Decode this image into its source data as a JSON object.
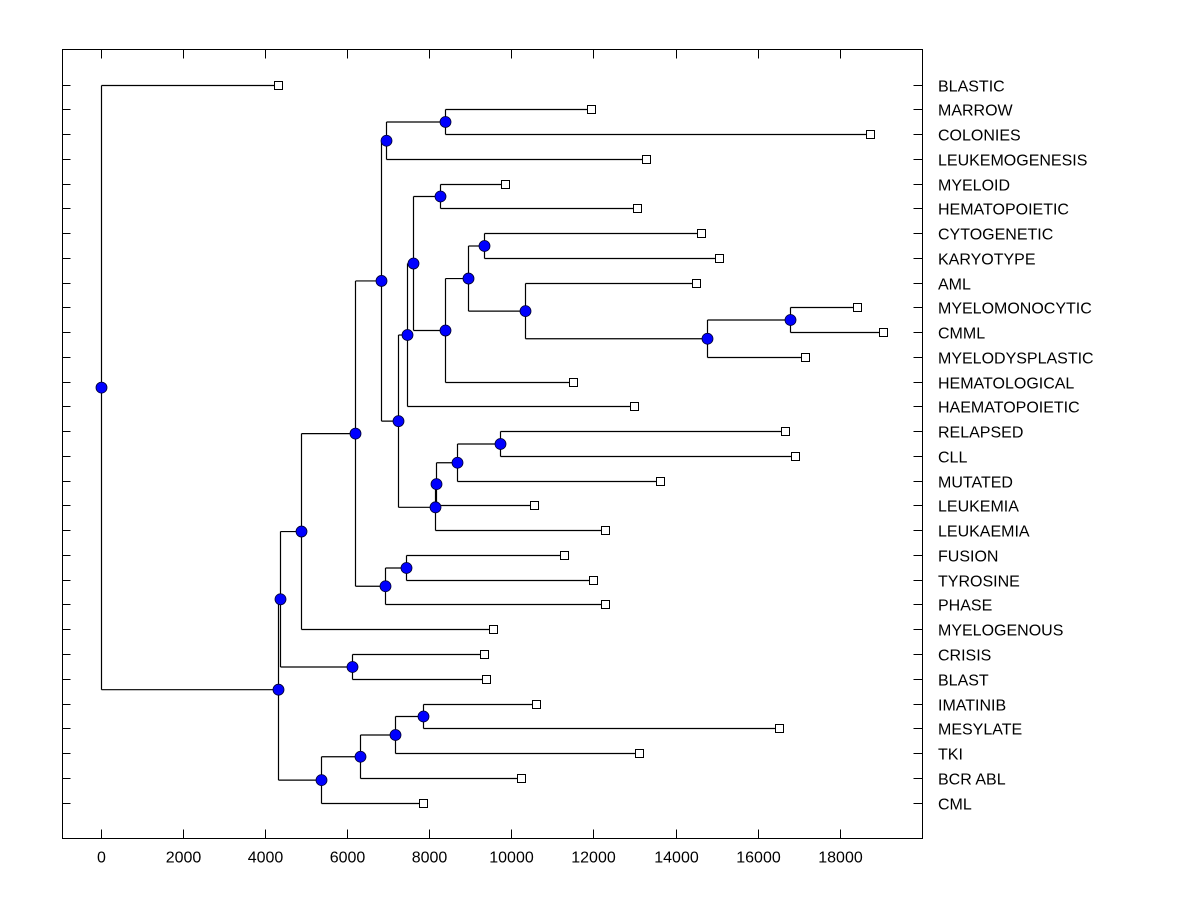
{
  "chart_data": {
    "type": "dendrogram",
    "title": "",
    "xlabel": "",
    "ylabel": "",
    "orientation": "horizontal",
    "xlim": [
      -900,
      19800
    ],
    "x_ticks": [
      0,
      2000,
      4000,
      6000,
      8000,
      10000,
      12000,
      14000,
      16000,
      18000
    ],
    "x_tick_labels": [
      "0",
      "2000",
      "4000",
      "6000",
      "8000",
      "10000",
      "12000",
      "14000",
      "16000",
      "18000"
    ],
    "grid": false,
    "leaf_labels_position": "right",
    "colors": {
      "node_fill": "#0000ff",
      "line": "#000000",
      "leaf_fill": "#ffffff"
    },
    "leaves": [
      {
        "label": "BLASTIC",
        "value": 4320
      },
      {
        "label": "MARROW",
        "value": 11930
      },
      {
        "label": "COLONIES",
        "value": 18730
      },
      {
        "label": "LEUKEMOGENESIS",
        "value": 13270
      },
      {
        "label": "MYELOID",
        "value": 9850
      },
      {
        "label": "HEMATOPOIETIC",
        "value": 13050
      },
      {
        "label": "CYTOGENETIC",
        "value": 14630
      },
      {
        "label": "KARYOTYPE",
        "value": 15070
      },
      {
        "label": "AML",
        "value": 14490
      },
      {
        "label": "MYELOMONOCYTIC",
        "value": 18420
      },
      {
        "label": "CMML",
        "value": 19050
      },
      {
        "label": "MYELODYSPLASTIC",
        "value": 17150
      },
      {
        "label": "HEMATOLOGICAL",
        "value": 11490
      },
      {
        "label": "HAEMATOPOIETIC",
        "value": 12980
      },
      {
        "label": "RELAPSED",
        "value": 16660
      },
      {
        "label": "CLL",
        "value": 16900
      },
      {
        "label": "MUTATED",
        "value": 13610
      },
      {
        "label": "LEUKEMIA",
        "value": 10560
      },
      {
        "label": "LEUKAEMIA",
        "value": 12290
      },
      {
        "label": "FUSION",
        "value": 11290
      },
      {
        "label": "TYROSINE",
        "value": 11980
      },
      {
        "label": "PHASE",
        "value": 12270
      },
      {
        "label": "MYELOGENOUS",
        "value": 9540
      },
      {
        "label": "CRISIS",
        "value": 9340
      },
      {
        "label": "BLAST",
        "value": 9370
      },
      {
        "label": "IMATINIB",
        "value": 10590
      },
      {
        "label": "MESYLATE",
        "value": 16510
      },
      {
        "label": "TKI",
        "value": 13100
      },
      {
        "label": "BCR ABL",
        "value": 10240
      },
      {
        "label": "CML",
        "value": 7850
      }
    ],
    "tree": {
      "value": 0,
      "children": [
        {
          "leaf": "BLASTIC"
        },
        {
          "value": 4320,
          "children": [
            {
              "value": 4370,
              "children": [
                {
                  "value": 4880,
                  "children": [
                    {
                      "value": 6200,
                      "children": [
                        {
                          "value": 6830,
                          "children": [
                            {
                              "value": 6950,
                              "children": [
                                {
                                  "value": 8370,
                                  "children": [
                                    {
                                      "leaf": "MARROW"
                                    },
                                    {
                                      "leaf": "COLONIES"
                                    }
                                  ]
                                },
                                {
                                  "leaf": "LEUKEMOGENESIS"
                                }
                              ]
                            },
                            {
                              "value": 7240,
                              "children": [
                                {
                                  "value": 7460,
                                  "children": [
                                    {
                                      "value": 7610,
                                      "children": [
                                        {
                                          "value": 8270,
                                          "children": [
                                            {
                                              "leaf": "MYELOID"
                                            },
                                            {
                                              "leaf": "HEMATOPOIETIC"
                                            }
                                          ]
                                        },
                                        {
                                          "value": 8390,
                                          "children": [
                                            {
                                              "value": 8950,
                                              "children": [
                                                {
                                                  "value": 9340,
                                                  "children": [
                                                    {
                                                      "leaf": "CYTOGENETIC"
                                                    },
                                                    {
                                                      "leaf": "KARYOTYPE"
                                                    }
                                                  ]
                                                },
                                                {
                                                  "value": 10340,
                                                  "children": [
                                                    {
                                                      "leaf": "AML"
                                                    },
                                                    {
                                                      "value": 14760,
                                                      "children": [
                                                        {
                                                          "value": 16780,
                                                          "children": [
                                                            {
                                                              "leaf": "MYELOMONOCYTIC"
                                                            },
                                                            {
                                                              "leaf": "CMML"
                                                            }
                                                          ]
                                                        },
                                                        {
                                                          "leaf": "MYELODYSPLASTIC"
                                                        }
                                                      ]
                                                    }
                                                  ]
                                                }
                                              ]
                                            },
                                            {
                                              "leaf": "HEMATOLOGICAL"
                                            }
                                          ]
                                        }
                                      ]
                                    },
                                    {
                                      "leaf": "HAEMATOPOIETIC"
                                    }
                                  ]
                                },
                                {
                                  "value": 8150,
                                  "children": [
                                    {
                                      "value": 8170,
                                      "children": [
                                        {
                                          "value": 8680,
                                          "children": [
                                            {
                                              "value": 9730,
                                              "children": [
                                                {
                                                  "leaf": "RELAPSED"
                                                },
                                                {
                                                  "leaf": "CLL"
                                                }
                                              ]
                                            },
                                            {
                                              "leaf": "MUTATED"
                                            }
                                          ]
                                        },
                                        {
                                          "leaf": "LEUKEMIA"
                                        }
                                      ]
                                    },
                                    {
                                      "leaf": "LEUKAEMIA"
                                    }
                                  ]
                                }
                              ]
                            }
                          ]
                        },
                        {
                          "value": 6930,
                          "children": [
                            {
                              "value": 7440,
                              "children": [
                                {
                                  "leaf": "FUSION"
                                },
                                {
                                  "leaf": "TYROSINE"
                                }
                              ]
                            },
                            {
                              "leaf": "PHASE"
                            }
                          ]
                        }
                      ]
                    },
                    {
                      "leaf": "MYELOGENOUS"
                    }
                  ]
                },
                {
                  "value": 6120,
                  "children": [
                    {
                      "leaf": "CRISIS"
                    },
                    {
                      "leaf": "BLAST"
                    }
                  ]
                }
              ]
            },
            {
              "value": 5370,
              "children": [
                {
                  "value": 6320,
                  "children": [
                    {
                      "value": 7170,
                      "children": [
                        {
                          "value": 7850,
                          "children": [
                            {
                              "leaf": "IMATINIB"
                            },
                            {
                              "leaf": "MESYLATE"
                            }
                          ]
                        },
                        {
                          "leaf": "TKI"
                        }
                      ]
                    },
                    {
                      "leaf": "BCR ABL"
                    }
                  ]
                },
                {
                  "leaf": "CML"
                }
              ]
            }
          ]
        }
      ]
    }
  }
}
